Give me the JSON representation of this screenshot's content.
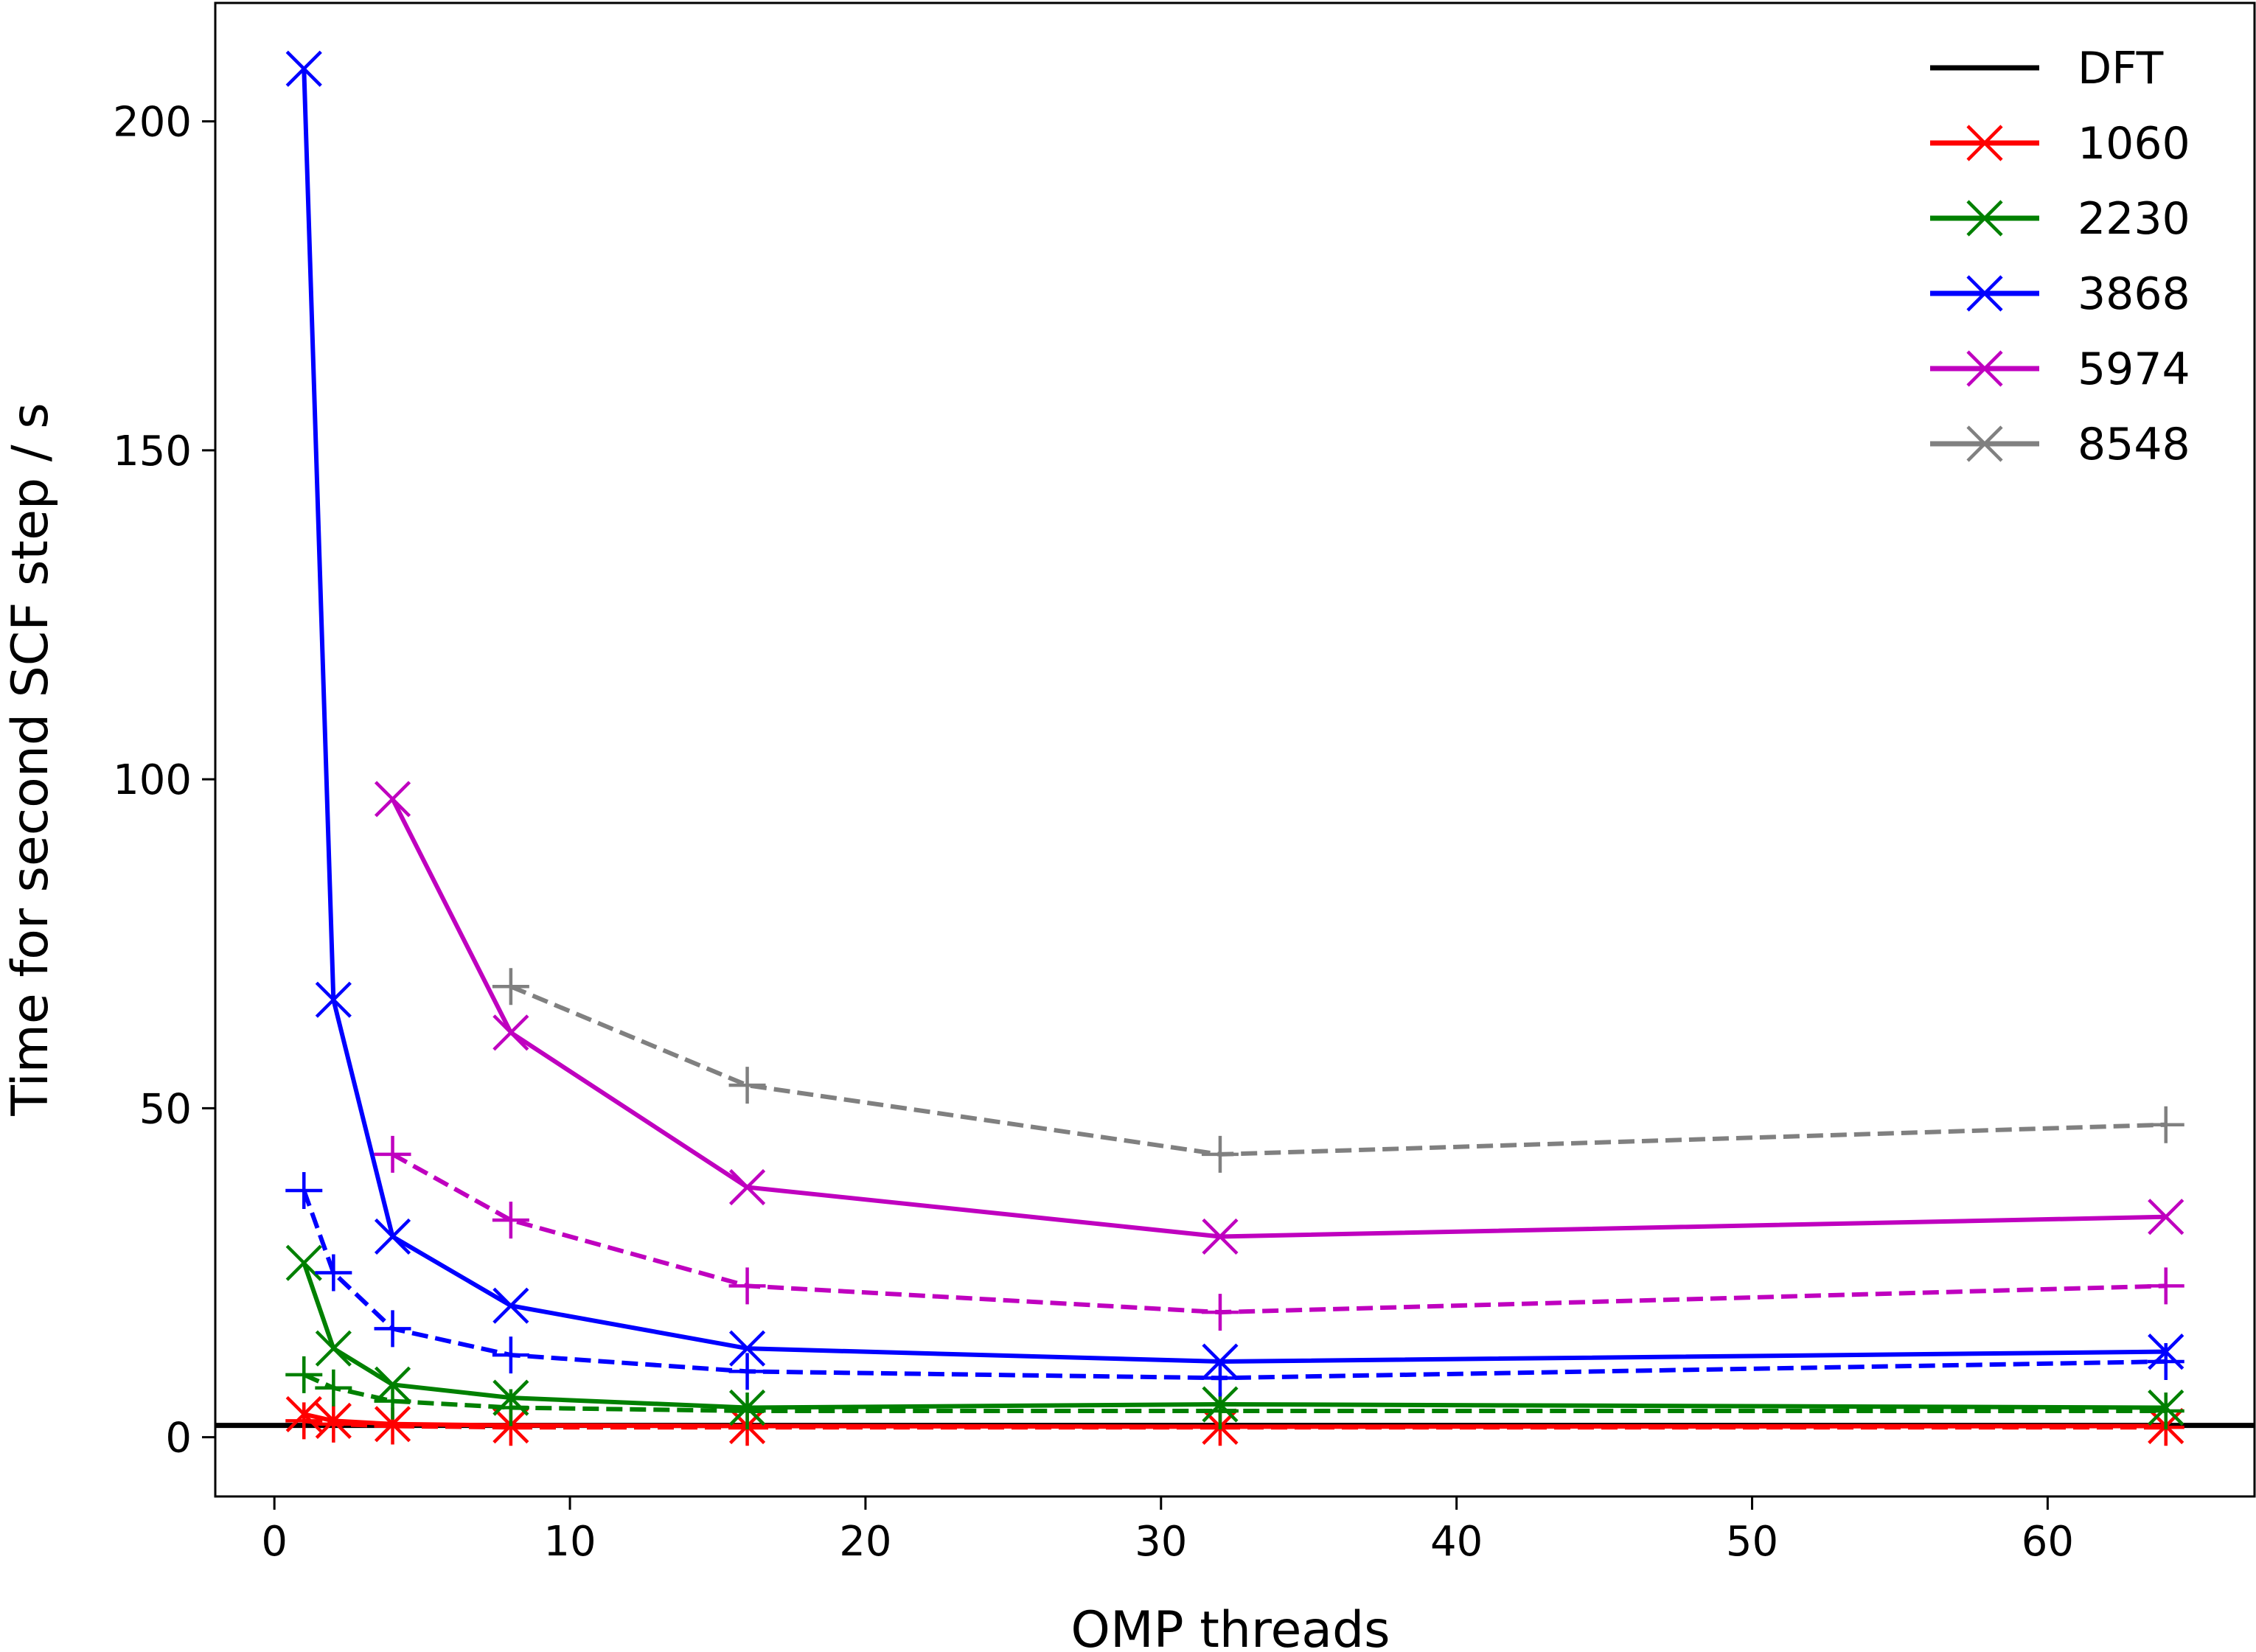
{
  "chart_data": {
    "type": "line",
    "xlabel": "OMP threads",
    "ylabel": "Time for second SCF step / s",
    "xlim": [
      -2,
      67
    ],
    "ylim": [
      -9,
      218
    ],
    "xticks": [
      0,
      10,
      20,
      30,
      40,
      50,
      60
    ],
    "yticks": [
      0,
      50,
      100,
      150,
      200
    ],
    "grid": false,
    "legend_position": "top-right",
    "legend": [
      {
        "label": "DFT",
        "color": "#000000",
        "marker": "none"
      },
      {
        "label": "1060",
        "color": "#ff0000",
        "marker": "x"
      },
      {
        "label": "2230",
        "color": "#008000",
        "marker": "x"
      },
      {
        "label": "3868",
        "color": "#0000ff",
        "marker": "x"
      },
      {
        "label": "5974",
        "color": "#bf00bf",
        "marker": "x"
      },
      {
        "label": "8548",
        "color": "#808080",
        "marker": "x"
      }
    ],
    "hlines": [
      {
        "name": "DFT",
        "y": 1.8,
        "color": "#000000"
      }
    ],
    "series": [
      {
        "name": "1060",
        "color": "#ff0000",
        "style": "solid",
        "marker": "x",
        "x": [
          1,
          2,
          4,
          8,
          16,
          32,
          64
        ],
        "y": [
          3.5,
          2.5,
          2.0,
          1.8,
          1.7,
          1.6,
          1.7
        ]
      },
      {
        "name": "1060",
        "color": "#ff0000",
        "style": "dashed",
        "marker": "+",
        "x": [
          1,
          2,
          4,
          8,
          16,
          32,
          64
        ],
        "y": [
          2.5,
          2.0,
          1.7,
          1.5,
          1.5,
          1.5,
          1.5
        ]
      },
      {
        "name": "2230",
        "color": "#008000",
        "style": "solid",
        "marker": "x",
        "x": [
          1,
          2,
          4,
          8,
          16,
          32,
          64
        ],
        "y": [
          26.5,
          13.5,
          8.0,
          6.0,
          4.5,
          5.0,
          4.5
        ]
      },
      {
        "name": "2230",
        "color": "#008000",
        "style": "dashed",
        "marker": "+",
        "x": [
          1,
          2,
          4,
          8,
          16,
          32,
          64
        ],
        "y": [
          9.5,
          7.5,
          5.5,
          4.5,
          4.0,
          4.0,
          4.0
        ]
      },
      {
        "name": "3868",
        "color": "#0000ff",
        "style": "solid",
        "marker": "x",
        "x": [
          1,
          2,
          4,
          8,
          16,
          32,
          64
        ],
        "y": [
          208,
          66.5,
          30.5,
          20.0,
          13.5,
          11.5,
          13.0
        ]
      },
      {
        "name": "3868",
        "color": "#0000ff",
        "style": "dashed",
        "marker": "+",
        "x": [
          1,
          2,
          4,
          8,
          16,
          32,
          64
        ],
        "y": [
          37.5,
          25.0,
          16.5,
          12.5,
          10.0,
          9.0,
          11.5
        ]
      },
      {
        "name": "5974",
        "color": "#bf00bf",
        "style": "solid",
        "marker": "x",
        "x": [
          4,
          8,
          16,
          32,
          64
        ],
        "y": [
          97.0,
          61.5,
          38.0,
          30.5,
          33.5
        ]
      },
      {
        "name": "5974",
        "color": "#bf00bf",
        "style": "dashed",
        "marker": "+",
        "x": [
          4,
          8,
          16,
          32,
          64
        ],
        "y": [
          43.0,
          33.0,
          23.0,
          19.0,
          23.0
        ]
      },
      {
        "name": "8548",
        "color": "#808080",
        "style": "dashed",
        "marker": "+",
        "x": [
          8,
          16,
          32,
          64
        ],
        "y": [
          68.5,
          53.5,
          43.0,
          47.5
        ]
      }
    ]
  }
}
